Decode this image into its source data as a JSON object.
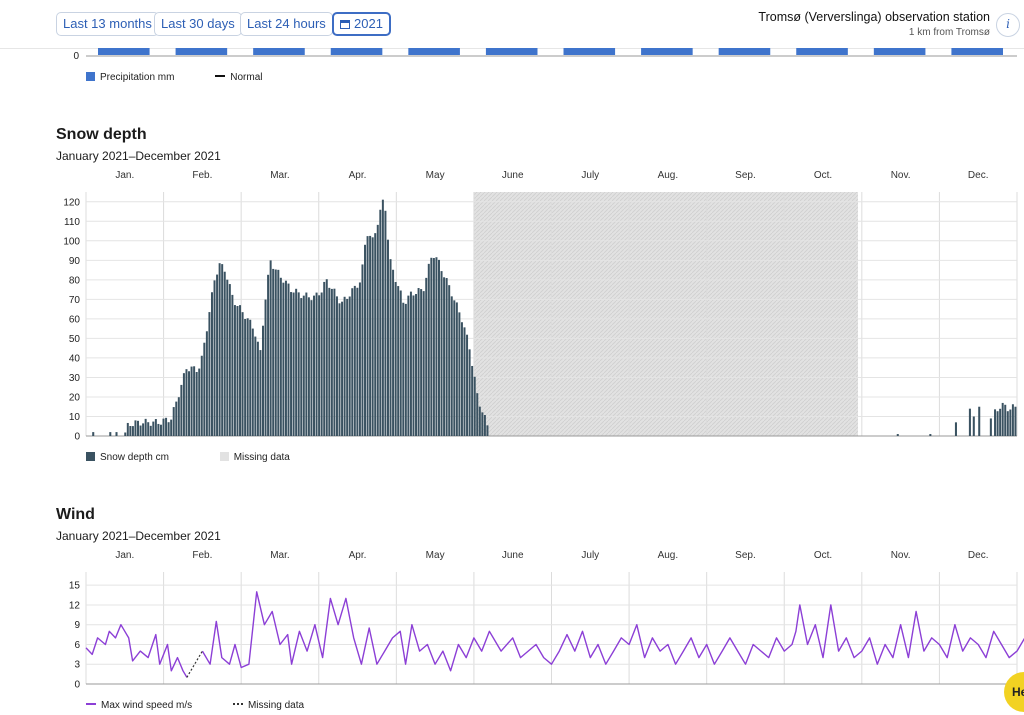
{
  "header": {
    "buttons": [
      {
        "label": "Last 13 months"
      },
      {
        "label": "Last 30 days"
      },
      {
        "label": "Last 24 hours"
      },
      {
        "label": "2021",
        "icon": "calendar-icon",
        "active": true
      }
    ],
    "station_name": "Tromsø (Ververslinga) observation station",
    "station_distance": "1 km from Tromsø",
    "info_label": "i"
  },
  "precipitation": {
    "axis_zero_label": "0",
    "legend": {
      "precip_label": "Precipitation mm",
      "normal_label": "Normal"
    },
    "colors": {
      "bar": "#3f74cc",
      "normal": "#111111"
    }
  },
  "months": [
    "Jan.",
    "Feb.",
    "Mar.",
    "Apr.",
    "May",
    "June",
    "July",
    "Aug.",
    "Sep.",
    "Oct.",
    "Nov.",
    "Dec."
  ],
  "snow": {
    "title": "Snow depth",
    "subtitle": "January 2021–December 2021",
    "legend": {
      "series_label": "Snow depth cm",
      "missing_label": "Missing data"
    },
    "colors": {
      "bar": "#3a5261",
      "missing": "#e2e2e2"
    }
  },
  "wind": {
    "title": "Wind",
    "subtitle": "January 2021–December 2021",
    "legend": {
      "series_label": "Max wind speed m/s",
      "missing_label": "Missing data"
    },
    "colors": {
      "line": "#8c3fd6",
      "missing": "#333333"
    }
  },
  "help_label": "He",
  "chart_data": [
    {
      "type": "bar",
      "title": "Snow depth",
      "subtitle": "January 2021–December 2021",
      "x_unit": "month",
      "xlim": [
        0,
        12
      ],
      "ylim": [
        0,
        125
      ],
      "yticks": [
        0,
        10,
        20,
        30,
        40,
        50,
        60,
        70,
        80,
        90,
        100,
        110,
        120
      ],
      "x_tick_labels": [
        "Jan.",
        "Feb.",
        "Mar.",
        "Apr.",
        "May",
        "June",
        "July",
        "Aug.",
        "Sep.",
        "Oct.",
        "Nov.",
        "Dec."
      ],
      "grid": true,
      "legend_position": "bottom-left",
      "missing_ranges": [
        [
          5.0,
          9.95
        ]
      ],
      "series": [
        {
          "name": "Snow depth cm",
          "knots": [
            [
              0.0,
              0
            ],
            [
              0.5,
              0
            ],
            [
              0.55,
              6
            ],
            [
              0.7,
              7
            ],
            [
              0.95,
              7
            ],
            [
              1.1,
              9
            ],
            [
              1.15,
              15
            ],
            [
              1.3,
              35
            ],
            [
              1.45,
              34
            ],
            [
              1.5,
              40
            ],
            [
              1.58,
              60
            ],
            [
              1.66,
              80
            ],
            [
              1.72,
              88
            ],
            [
              1.8,
              85
            ],
            [
              1.9,
              70
            ],
            [
              2.05,
              62
            ],
            [
              2.17,
              55
            ],
            [
              2.25,
              42
            ],
            [
              2.3,
              65
            ],
            [
              2.38,
              90
            ],
            [
              2.45,
              85
            ],
            [
              2.55,
              80
            ],
            [
              2.65,
              75
            ],
            [
              2.8,
              72
            ],
            [
              2.95,
              71
            ],
            [
              3.05,
              75
            ],
            [
              3.1,
              80
            ],
            [
              3.2,
              74
            ],
            [
              3.3,
              68
            ],
            [
              3.45,
              75
            ],
            [
              3.55,
              80
            ],
            [
              3.62,
              105
            ],
            [
              3.7,
              100
            ],
            [
              3.78,
              112
            ],
            [
              3.85,
              123
            ],
            [
              3.92,
              90
            ],
            [
              4.0,
              80
            ],
            [
              4.1,
              68
            ],
            [
              4.2,
              73
            ],
            [
              4.35,
              75
            ],
            [
              4.47,
              94
            ],
            [
              4.55,
              89
            ],
            [
              4.7,
              75
            ],
            [
              4.85,
              60
            ],
            [
              4.95,
              45
            ],
            [
              5.05,
              20
            ],
            [
              5.18,
              5
            ],
            [
              5.22,
              0
            ],
            [
              12.0,
              0
            ]
          ],
          "sparse_bars": [
            [
              0.08,
              2
            ],
            [
              0.3,
              2
            ],
            [
              0.38,
              2
            ],
            [
              10.45,
              1
            ],
            [
              10.87,
              1
            ],
            [
              11.2,
              7
            ],
            [
              11.38,
              14
            ],
            [
              11.43,
              10
            ],
            [
              11.5,
              15
            ],
            [
              11.65,
              9
            ]
          ],
          "block": {
            "from": 11.72,
            "to": 12.0,
            "knots": [
              [
                11.72,
                12
              ],
              [
                11.8,
                16
              ],
              [
                11.9,
                14
              ],
              [
                12.0,
                15
              ],
              [
                12.2,
                16
              ],
              [
                12.45,
                15
              ],
              [
                12.55,
                17
              ],
              [
                12.65,
                13
              ],
              [
                12.7,
                18
              ],
              [
                12.8,
                30
              ],
              [
                12.84,
                52
              ],
              [
                12.88,
                63
              ],
              [
                12.93,
                50
              ],
              [
                12.97,
                46
              ]
            ]
          }
        }
      ]
    },
    {
      "type": "line",
      "title": "Wind",
      "subtitle": "January 2021–December 2021",
      "x_unit": "month",
      "xlim": [
        0,
        12
      ],
      "ylim": [
        0,
        17
      ],
      "yticks": [
        0,
        3,
        6,
        9,
        12,
        15
      ],
      "x_tick_labels": [
        "Jan.",
        "Feb.",
        "Mar.",
        "Apr.",
        "May",
        "June",
        "July",
        "Aug.",
        "Sep.",
        "Oct.",
        "Nov.",
        "Dec."
      ],
      "grid": true,
      "legend_position": "bottom-left",
      "missing_ranges": [
        [
          1.35,
          1.45
        ]
      ],
      "series": [
        {
          "name": "Max wind speed m/s",
          "knots": [
            [
              0.0,
              5.5
            ],
            [
              0.08,
              4.5
            ],
            [
              0.15,
              7
            ],
            [
              0.25,
              6
            ],
            [
              0.3,
              8
            ],
            [
              0.38,
              7
            ],
            [
              0.45,
              9
            ],
            [
              0.55,
              7
            ],
            [
              0.6,
              3.5
            ],
            [
              0.7,
              5
            ],
            [
              0.8,
              4
            ],
            [
              0.9,
              7.5
            ],
            [
              0.95,
              3
            ],
            [
              1.05,
              6
            ],
            [
              1.1,
              2
            ],
            [
              1.18,
              4
            ],
            [
              1.25,
              2
            ],
            [
              1.3,
              1
            ],
            [
              1.4,
              7.5
            ],
            [
              1.5,
              5
            ],
            [
              1.6,
              3
            ],
            [
              1.68,
              9.5
            ],
            [
              1.75,
              4
            ],
            [
              1.85,
              3
            ],
            [
              1.92,
              6
            ],
            [
              2.0,
              2.5
            ],
            [
              2.1,
              3
            ],
            [
              2.2,
              14
            ],
            [
              2.3,
              9
            ],
            [
              2.4,
              11
            ],
            [
              2.5,
              6
            ],
            [
              2.6,
              7.5
            ],
            [
              2.65,
              3
            ],
            [
              2.75,
              8
            ],
            [
              2.85,
              5
            ],
            [
              2.95,
              9
            ],
            [
              3.05,
              4
            ],
            [
              3.15,
              13
            ],
            [
              3.25,
              9
            ],
            [
              3.35,
              13
            ],
            [
              3.45,
              7
            ],
            [
              3.55,
              3
            ],
            [
              3.65,
              8.5
            ],
            [
              3.75,
              3
            ],
            [
              3.85,
              5
            ],
            [
              3.95,
              7
            ],
            [
              4.05,
              8
            ],
            [
              4.12,
              3
            ],
            [
              4.2,
              9
            ],
            [
              4.3,
              5
            ],
            [
              4.4,
              6
            ],
            [
              4.5,
              3
            ],
            [
              4.6,
              5
            ],
            [
              4.7,
              2
            ],
            [
              4.8,
              6
            ],
            [
              4.9,
              4
            ],
            [
              5.0,
              7
            ],
            [
              5.1,
              5
            ],
            [
              5.2,
              8
            ],
            [
              5.35,
              5
            ],
            [
              5.5,
              7
            ],
            [
              5.6,
              4
            ],
            [
              5.7,
              5
            ],
            [
              5.8,
              6
            ],
            [
              5.9,
              4
            ],
            [
              6.0,
              3
            ],
            [
              6.1,
              5
            ],
            [
              6.2,
              7.5
            ],
            [
              6.3,
              5
            ],
            [
              6.4,
              8
            ],
            [
              6.5,
              4
            ],
            [
              6.6,
              6
            ],
            [
              6.7,
              3
            ],
            [
              6.8,
              5
            ],
            [
              6.9,
              7
            ],
            [
              7.0,
              6
            ],
            [
              7.1,
              9
            ],
            [
              7.2,
              4
            ],
            [
              7.3,
              7
            ],
            [
              7.4,
              5
            ],
            [
              7.5,
              6
            ],
            [
              7.6,
              3
            ],
            [
              7.7,
              5
            ],
            [
              7.8,
              7
            ],
            [
              7.9,
              4
            ],
            [
              8.0,
              6
            ],
            [
              8.1,
              3
            ],
            [
              8.2,
              5
            ],
            [
              8.3,
              7
            ],
            [
              8.4,
              5
            ],
            [
              8.5,
              3
            ],
            [
              8.6,
              6
            ],
            [
              8.7,
              5
            ],
            [
              8.8,
              4
            ],
            [
              8.9,
              7
            ],
            [
              9.0,
              5
            ],
            [
              9.1,
              6
            ],
            [
              9.15,
              8
            ],
            [
              9.2,
              12
            ],
            [
              9.3,
              6
            ],
            [
              9.4,
              9
            ],
            [
              9.5,
              4
            ],
            [
              9.6,
              12
            ],
            [
              9.7,
              5
            ],
            [
              9.8,
              7
            ],
            [
              9.9,
              4
            ],
            [
              10.0,
              5
            ],
            [
              10.1,
              7
            ],
            [
              10.2,
              3
            ],
            [
              10.3,
              6
            ],
            [
              10.4,
              4
            ],
            [
              10.5,
              9
            ],
            [
              10.6,
              4
            ],
            [
              10.7,
              11
            ],
            [
              10.8,
              5
            ],
            [
              10.9,
              7
            ],
            [
              11.0,
              6
            ],
            [
              11.1,
              4
            ],
            [
              11.2,
              9
            ],
            [
              11.3,
              5
            ],
            [
              11.4,
              7
            ],
            [
              11.5,
              6
            ],
            [
              11.6,
              4
            ],
            [
              11.7,
              8
            ],
            [
              11.8,
              6
            ],
            [
              11.9,
              4
            ],
            [
              12.0,
              5
            ],
            [
              12.1,
              7
            ],
            [
              12.2,
              6
            ],
            [
              12.3,
              9
            ],
            [
              12.4,
              5
            ],
            [
              12.5,
              8
            ],
            [
              12.6,
              6
            ],
            [
              12.7,
              3
            ],
            [
              12.8,
              8
            ],
            [
              12.9,
              4
            ],
            [
              12.97,
              5
            ]
          ]
        }
      ]
    }
  ]
}
